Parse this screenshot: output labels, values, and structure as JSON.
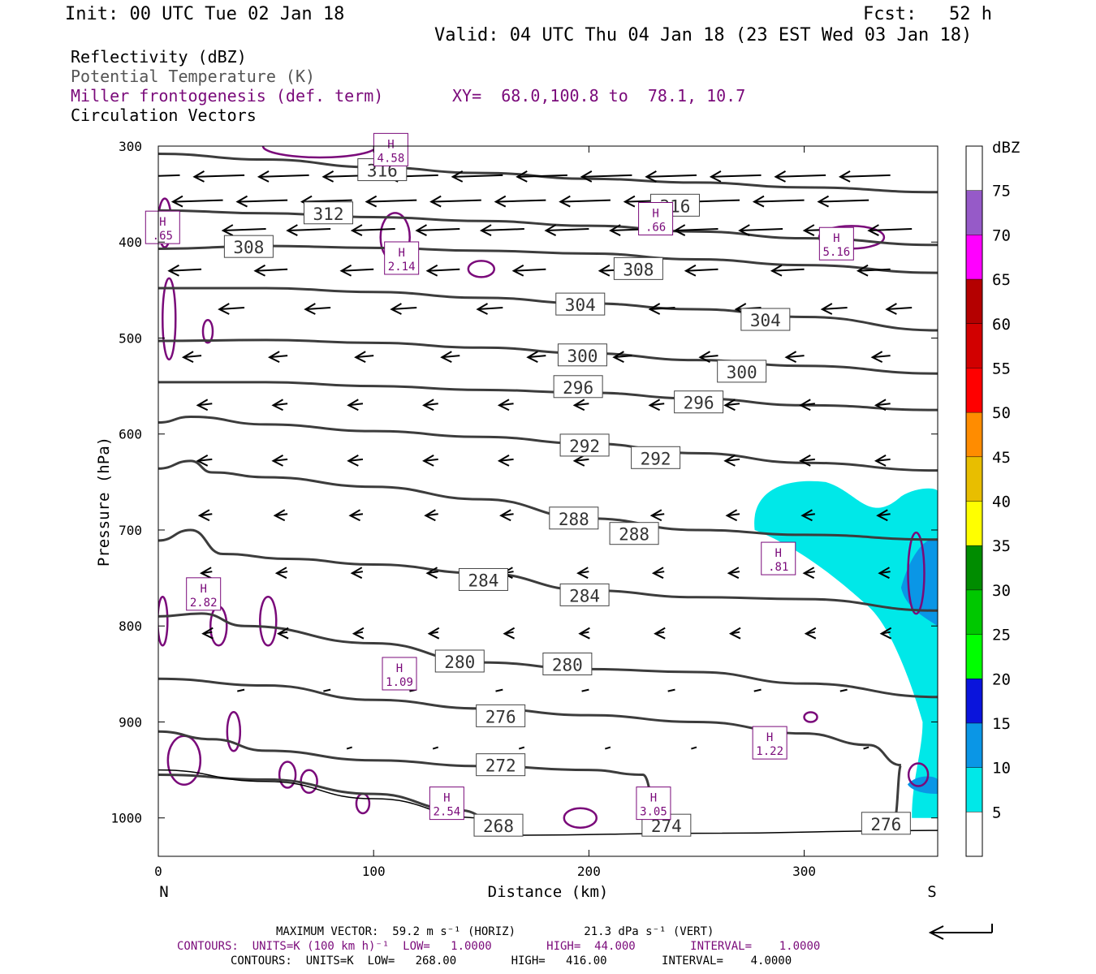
{
  "header": {
    "init": "Init: 00 UTC Tue 02 Jan 18",
    "fcst": "Fcst:   52 h",
    "valid": "Valid: 04 UTC Thu 04 Jan 18 (23 EST Wed 03 Jan 18)",
    "fields": [
      "Reflectivity (dBZ)",
      "Potential Temperature (K)",
      "Miller frontogenesis (def. term)",
      "Circulation Vectors"
    ],
    "xy": "XY=  68.0,100.8 to  78.1, 10.7"
  },
  "footer": {
    "maxvec": "MAXIMUM VECTOR:  59.2 m s⁻¹ (HORIZ)          21.3 dPa s⁻¹ (VERT)",
    "contours1": "CONTOURS:  UNITS=K (100 km h)⁻¹  LOW=   1.0000        HIGH=  44.000        INTERVAL=    1.0000",
    "contours2": "CONTOURS:  UNITS=K  LOW=   268.00        HIGH=   416.00        INTERVAL=    4.0000"
  },
  "colors": {
    "theta": "#3c3c3c",
    "fronto": "#7a0a7a",
    "refl_5": "#00e8e8",
    "refl_10": "#0a96e6"
  },
  "chart_data": {
    "type": "cross-section",
    "xlabel": "Distance (km)",
    "ylabel": "Pressure (hPa)",
    "x_left_label": "N",
    "x_right_label": "S",
    "xlim": [
      0,
      362
    ],
    "ylim": [
      1040,
      300
    ],
    "xticks": [
      0,
      100,
      200,
      300
    ],
    "yticks": [
      300,
      400,
      500,
      600,
      700,
      800,
      900,
      1000
    ],
    "colorbar": {
      "unit": "dBZ",
      "levels": [
        5,
        10,
        15,
        20,
        25,
        30,
        35,
        40,
        45,
        50,
        55,
        60,
        65,
        70,
        75
      ],
      "colors": [
        "#ffffff",
        "#00e8e8",
        "#0a96e6",
        "#0a14dc",
        "#00ff00",
        "#00c800",
        "#008c00",
        "#ffff00",
        "#e8be00",
        "#ff8c00",
        "#ff0000",
        "#d20000",
        "#b40000",
        "#ff00ff",
        "#965ac8",
        "#ffffff"
      ]
    },
    "theta_contours": [
      {
        "value": 316,
        "points": [
          [
            0,
            308
          ],
          [
            50,
            314
          ],
          [
            100,
            322
          ],
          [
            150,
            328
          ],
          [
            200,
            334
          ],
          [
            250,
            338
          ],
          [
            300,
            343
          ],
          [
            362,
            348
          ]
        ],
        "labels": [
          [
            104,
            325
          ],
          [
            240,
            362
          ]
        ]
      },
      {
        "value": 312,
        "points": [
          [
            0,
            367
          ],
          [
            50,
            370
          ],
          [
            100,
            374
          ],
          [
            150,
            378
          ],
          [
            200,
            383
          ],
          [
            250,
            389
          ],
          [
            300,
            396
          ],
          [
            362,
            403
          ]
        ],
        "labels": [
          [
            79,
            370
          ]
        ]
      },
      {
        "value": 308,
        "points": [
          [
            0,
            407
          ],
          [
            50,
            404
          ],
          [
            100,
            406
          ],
          [
            150,
            409
          ],
          [
            200,
            412
          ],
          [
            250,
            418
          ],
          [
            300,
            424
          ],
          [
            362,
            432
          ]
        ],
        "labels": [
          [
            42,
            405
          ],
          [
            223,
            428
          ]
        ]
      },
      {
        "value": 304,
        "points": [
          [
            0,
            448
          ],
          [
            50,
            448
          ],
          [
            100,
            452
          ],
          [
            150,
            458
          ],
          [
            200,
            464
          ],
          [
            250,
            470
          ],
          [
            300,
            478
          ],
          [
            362,
            492
          ]
        ],
        "labels": [
          [
            196,
            465
          ],
          [
            282,
            481
          ]
        ]
      },
      {
        "value": 300,
        "points": [
          [
            0,
            503
          ],
          [
            50,
            502
          ],
          [
            100,
            505
          ],
          [
            150,
            510
          ],
          [
            200,
            516
          ],
          [
            250,
            523
          ],
          [
            300,
            529
          ],
          [
            362,
            537
          ]
        ],
        "labels": [
          [
            197,
            518
          ],
          [
            271,
            535
          ]
        ]
      },
      {
        "value": 296,
        "points": [
          [
            0,
            546
          ],
          [
            50,
            546
          ],
          [
            100,
            550
          ],
          [
            150,
            554
          ],
          [
            200,
            557
          ],
          [
            250,
            563
          ],
          [
            300,
            570
          ],
          [
            362,
            575
          ]
        ],
        "labels": [
          [
            195,
            551
          ],
          [
            251,
            567
          ]
        ]
      },
      {
        "value": 292,
        "points": [
          [
            0,
            588
          ],
          [
            15,
            582
          ],
          [
            50,
            590
          ],
          [
            100,
            597
          ],
          [
            150,
            603
          ],
          [
            200,
            610
          ],
          [
            250,
            620
          ],
          [
            300,
            630
          ],
          [
            362,
            638
          ]
        ],
        "labels": [
          [
            198,
            612
          ],
          [
            231,
            625
          ]
        ]
      },
      {
        "value": 288,
        "points": [
          [
            0,
            636
          ],
          [
            15,
            628
          ],
          [
            25,
            640
          ],
          [
            50,
            645
          ],
          [
            100,
            655
          ],
          [
            150,
            668
          ],
          [
            200,
            688
          ],
          [
            250,
            700
          ],
          [
            300,
            705
          ],
          [
            362,
            710
          ]
        ],
        "labels": [
          [
            193,
            688
          ],
          [
            221,
            704
          ]
        ]
      },
      {
        "value": 284,
        "points": [
          [
            0,
            711
          ],
          [
            15,
            700
          ],
          [
            30,
            725
          ],
          [
            60,
            730
          ],
          [
            100,
            736
          ],
          [
            150,
            745
          ],
          [
            200,
            763
          ],
          [
            250,
            770
          ],
          [
            300,
            772
          ],
          [
            362,
            784
          ]
        ],
        "labels": [
          [
            151,
            752
          ],
          [
            198,
            768
          ]
        ]
      },
      {
        "value": 280,
        "points": [
          [
            0,
            790
          ],
          [
            20,
            787
          ],
          [
            40,
            800
          ],
          [
            100,
            818
          ],
          [
            150,
            838
          ],
          [
            200,
            845
          ],
          [
            250,
            848
          ],
          [
            300,
            860
          ],
          [
            362,
            874
          ]
        ],
        "labels": [
          [
            140,
            837
          ],
          [
            190,
            840
          ]
        ]
      },
      {
        "value": 276,
        "points": [
          [
            0,
            855
          ],
          [
            50,
            862
          ],
          [
            100,
            877
          ],
          [
            150,
            886
          ],
          [
            200,
            893
          ],
          [
            250,
            900
          ],
          [
            300,
            912
          ],
          [
            330,
            924
          ],
          [
            345,
            945
          ],
          [
            342,
            1000
          ]
        ],
        "labels": [
          [
            159,
            894
          ]
        ]
      },
      {
        "value": 272,
        "points": [
          [
            0,
            910
          ],
          [
            25,
            918
          ],
          [
            50,
            930
          ],
          [
            100,
            940
          ],
          [
            150,
            946
          ],
          [
            200,
            950
          ],
          [
            225,
            955
          ],
          [
            232,
            995
          ]
        ],
        "labels": [
          [
            159,
            945
          ]
        ]
      },
      {
        "value": 268,
        "points": [
          [
            0,
            955
          ],
          [
            50,
            960
          ],
          [
            100,
            975
          ],
          [
            140,
            992
          ],
          [
            160,
            1008
          ]
        ],
        "labels": [
          [
            158,
            1008
          ]
        ]
      }
    ],
    "extra_theta_labels": [
      {
        "value": "274",
        "label": [
          236,
          1008
        ]
      },
      {
        "value": "276",
        "label": [
          338,
          1006
        ]
      }
    ],
    "fronto_highs": [
      {
        "value": "4.58",
        "x": 108,
        "p": 302
      },
      {
        "value": ".66",
        "x": 231,
        "p": 374
      },
      {
        "value": "5.16",
        "x": 315,
        "p": 400
      },
      {
        "value": "2.14",
        "x": 113,
        "p": 415
      },
      {
        "value": ".65",
        "x": 2,
        "p": 383
      },
      {
        "value": ".81",
        "x": 288,
        "p": 728
      },
      {
        "value": "2.82",
        "x": 21,
        "p": 765
      },
      {
        "value": "1.09",
        "x": 112,
        "p": 848
      },
      {
        "value": "1.22",
        "x": 284,
        "p": 920
      },
      {
        "value": "2.54",
        "x": 134,
        "p": 983
      },
      {
        "value": "3.05",
        "x": 230,
        "p": 983
      }
    ],
    "arrow_rows": [
      {
        "p": 332,
        "speed": 28,
        "xs": [
          10,
          40,
          70,
          100,
          130,
          160,
          190,
          220,
          250,
          280,
          310,
          340
        ]
      },
      {
        "p": 358,
        "speed": 28,
        "xs": [
          30,
          60,
          90,
          120,
          150,
          180,
          210,
          240,
          270,
          300,
          330
        ]
      },
      {
        "p": 388,
        "speed": 24,
        "xs": [
          10,
          50,
          80,
          110,
          140,
          170,
          200,
          230,
          260,
          290,
          320,
          350
        ]
      },
      {
        "p": 430,
        "speed": 18,
        "xs": [
          20,
          60,
          100,
          140,
          180,
          220,
          260,
          300,
          340
        ]
      },
      {
        "p": 470,
        "speed": 14,
        "xs": [
          40,
          80,
          120,
          160,
          200,
          240,
          280,
          320,
          350
        ]
      },
      {
        "p": 520,
        "speed": 10,
        "xs": [
          20,
          60,
          100,
          140,
          180,
          220,
          260,
          300,
          340
        ]
      },
      {
        "p": 570,
        "speed": 8,
        "xs": [
          25,
          60,
          95,
          130,
          165,
          200,
          235,
          270,
          305,
          340
        ]
      },
      {
        "p": 628,
        "speed": 8,
        "xs": [
          25,
          60,
          95,
          130,
          165,
          200,
          235,
          270,
          305,
          340
        ]
      },
      {
        "p": 685,
        "speed": 7,
        "xs": [
          25,
          60,
          95,
          130,
          165,
          200,
          235,
          270,
          305,
          340
        ]
      },
      {
        "p": 745,
        "speed": 6,
        "xs": [
          25,
          60,
          95,
          130,
          165,
          200,
          235,
          270,
          305,
          340
        ]
      },
      {
        "p": 808,
        "speed": 5,
        "xs": [
          25,
          60,
          95,
          130,
          165,
          200,
          235,
          270,
          305,
          340
        ]
      },
      {
        "p": 868,
        "speed": 4,
        "xs": [
          40,
          80,
          120,
          160,
          200,
          240,
          280,
          320
        ]
      },
      {
        "p": 928,
        "speed": 3,
        "xs": [
          90,
          130,
          170,
          210,
          250,
          290,
          330
        ]
      }
    ]
  }
}
